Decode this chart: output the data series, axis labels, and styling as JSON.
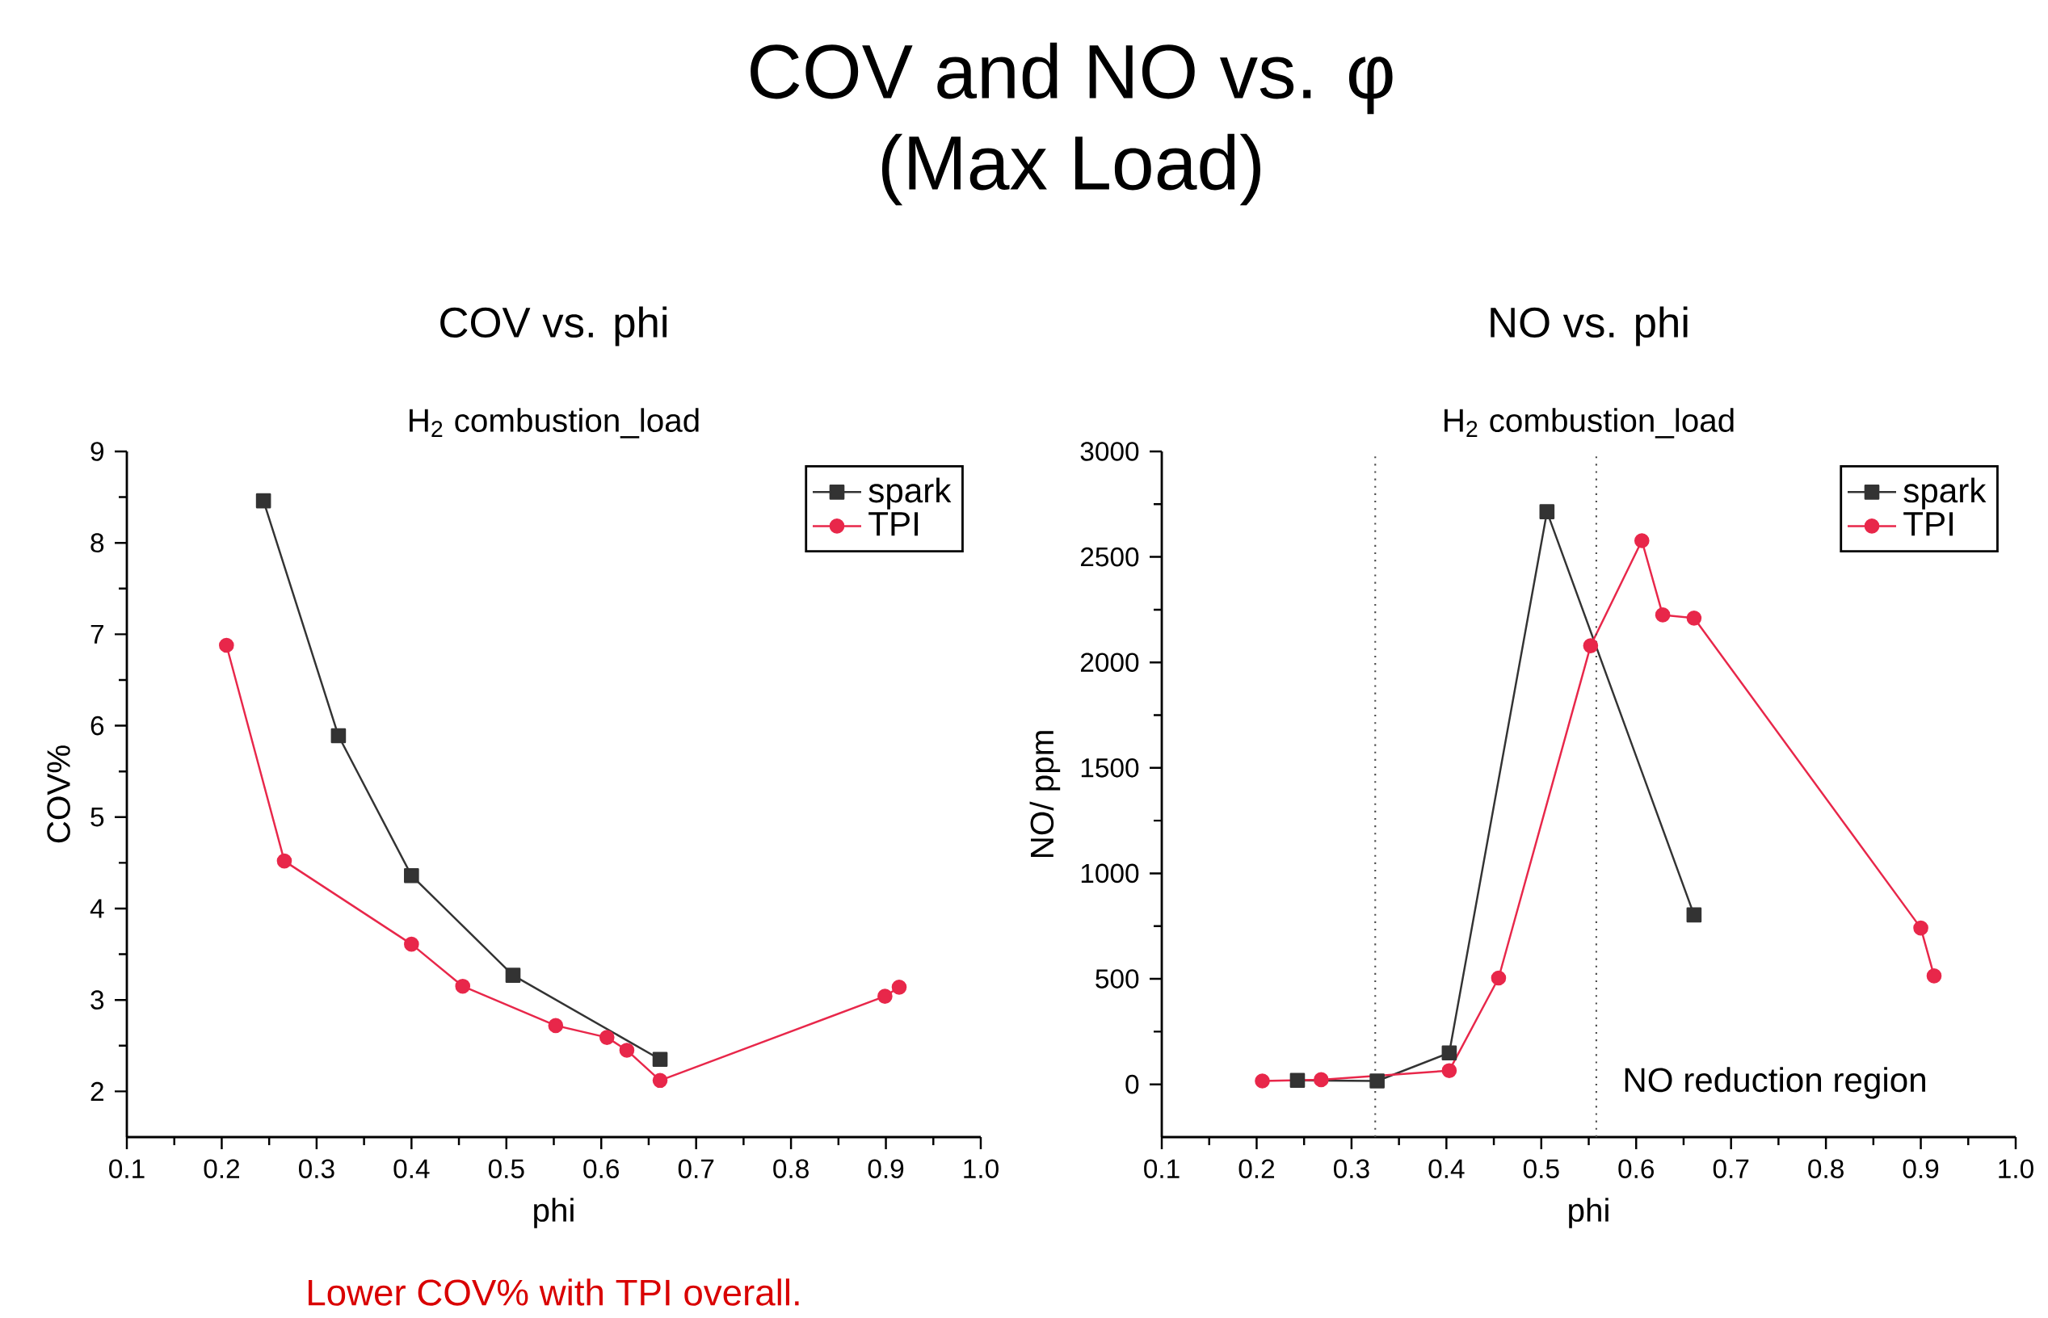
{
  "chart_data": [
    {
      "type": "other",
      "title": "COV and NO vs. φ",
      "subtitle": "(Max Load)"
    },
    {
      "type": "line",
      "title": "COV vs. phi",
      "subtitle": "H$_{2}$ combustion_load",
      "xlabel": "phi",
      "ylabel": "COV%",
      "xlim": [
        0.1,
        1.0
      ],
      "xticks": [
        0.1,
        0.2,
        0.3,
        0.4,
        0.5,
        0.6,
        0.7,
        0.8,
        0.9,
        {
          "value": 1.0,
          "label": "1.0"
        }
      ],
      "ylim": [
        1.5,
        9
      ],
      "yticks": [
        2,
        3,
        4,
        5,
        6,
        7,
        8,
        9
      ],
      "legend": "top right",
      "line_style": "solid",
      "series": [
        {
          "name": "spark",
          "color": "#333333",
          "marker": "square",
          "x": [
            0.244,
            0.323,
            0.4,
            0.507,
            0.662
          ],
          "values": [
            8.46,
            5.89,
            4.36,
            3.27,
            2.35
          ]
        },
        {
          "name": "TPI",
          "color": "#e8274a",
          "marker": "circle",
          "x": [
            0.205,
            0.266,
            0.4,
            0.454,
            0.552,
            0.606,
            0.627,
            0.662,
            0.899,
            0.914
          ],
          "values": [
            6.88,
            4.52,
            3.61,
            3.15,
            2.72,
            2.59,
            2.45,
            2.12,
            3.04,
            3.14
          ]
        }
      ],
      "annotations": [
        "Lower COV% with TPI overall."
      ]
    },
    {
      "type": "line",
      "title": "NO vs. phi",
      "subtitle": "H$_{2}$ combustion_load",
      "xlabel": "phi",
      "ylabel": "NO/ ppm",
      "xlim": [
        0.1,
        1.0
      ],
      "xticks": [
        0.1,
        0.2,
        0.3,
        0.4,
        0.5,
        0.6,
        0.7,
        0.8,
        0.9,
        {
          "value": 1.0,
          "label": "1.0"
        }
      ],
      "ylim": [
        -250,
        3000
      ],
      "yticks": [
        0,
        500,
        1000,
        1500,
        2000,
        2500,
        3000
      ],
      "legend": "top right",
      "line_style": "solid",
      "series": [
        {
          "name": "spark",
          "color": "#333333",
          "marker": "square",
          "x": [
            0.243,
            0.327,
            0.403,
            0.506,
            0.661
          ],
          "values": [
            19,
            16,
            149,
            2714,
            803
          ]
        },
        {
          "name": "TPI",
          "color": "#e8274a",
          "marker": "circle",
          "x": [
            0.206,
            0.268,
            0.403,
            0.455,
            0.552,
            0.606,
            0.628,
            0.661,
            0.9,
            0.914
          ],
          "values": [
            16,
            22,
            65,
            504,
            2079,
            2577,
            2225,
            2210,
            741,
            514
          ]
        }
      ],
      "ref_lines": [
        {
          "axis": "x",
          "value": 0.325,
          "line_style": "dotted"
        },
        {
          "axis": "x",
          "value": 0.558,
          "line_style": "dotted",
          "label": "NO reduction region"
        }
      ]
    }
  ]
}
